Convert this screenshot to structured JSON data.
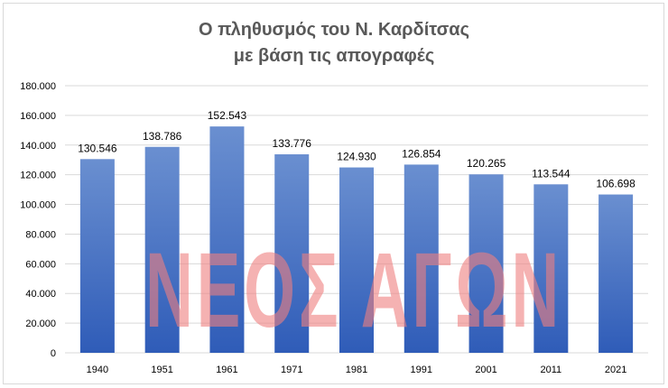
{
  "chart_data": {
    "type": "bar",
    "title": "Ο πληθυσμός του Ν. Καρδίτσας",
    "subtitle": "με βάση τις απογραφές",
    "categories": [
      "1940",
      "1951",
      "1961",
      "1971",
      "1981",
      "1991",
      "2001",
      "2011",
      "2021"
    ],
    "values": [
      130546,
      138786,
      152543,
      133776,
      124930,
      126854,
      120265,
      113544,
      106698
    ],
    "data_labels": [
      "130.546",
      "138.786",
      "152.543",
      "133.776",
      "124.930",
      "126.854",
      "120.265",
      "113.544",
      "106.698"
    ],
    "y_ticks": [
      0,
      20000,
      40000,
      60000,
      80000,
      100000,
      120000,
      140000,
      160000,
      180000
    ],
    "y_tick_labels": [
      "0",
      "20.000",
      "40.000",
      "60.000",
      "80.000",
      "100.000",
      "120.000",
      "140.000",
      "160.000",
      "180.000"
    ],
    "ylim": [
      0,
      180000
    ],
    "grid": true,
    "bar_color_top": "#6a8fd0",
    "bar_color_bottom": "#2f5cb8",
    "grid_color": "#d9d9d9",
    "title_color": "#595959"
  },
  "watermark": {
    "text": "ΝΕΟΣ ΑΓΩΝ",
    "color": "#f08080"
  }
}
